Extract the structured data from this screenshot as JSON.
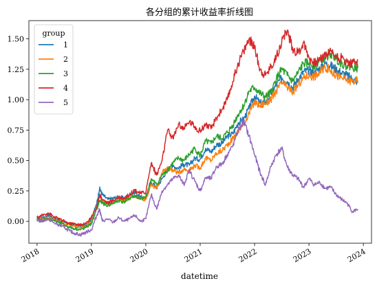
{
  "chart_data": {
    "type": "line",
    "title": "各分组的累计收益率折线图",
    "xlabel": "datetime",
    "ylabel": "",
    "x_ticks": [
      "2018",
      "2019",
      "2020",
      "2021",
      "2022",
      "2023",
      "2024"
    ],
    "y_ticks": [
      "0.00",
      "0.25",
      "0.50",
      "0.75",
      "1.00",
      "1.25",
      "1.50"
    ],
    "xlim": [
      2017.85,
      2024.15
    ],
    "ylim": [
      -0.18,
      1.65
    ],
    "grid": false,
    "legend": {
      "title": "group",
      "placement": "top-left"
    },
    "series": [
      {
        "name": "1",
        "color": "#1f77b4",
        "x": [
          2018.0,
          2018.1,
          2018.2,
          2018.3,
          2018.4,
          2018.5,
          2018.6,
          2018.7,
          2018.8,
          2018.9,
          2019.0,
          2019.1,
          2019.15,
          2019.2,
          2019.3,
          2019.4,
          2019.5,
          2019.6,
          2019.7,
          2019.8,
          2019.9,
          2020.0,
          2020.1,
          2020.2,
          2020.3,
          2020.4,
          2020.5,
          2020.6,
          2020.7,
          2020.8,
          2020.9,
          2021.0,
          2021.1,
          2021.2,
          2021.3,
          2021.4,
          2021.5,
          2021.6,
          2021.7,
          2021.8,
          2021.9,
          2022.0,
          2022.1,
          2022.2,
          2022.3,
          2022.4,
          2022.5,
          2022.6,
          2022.7,
          2022.8,
          2022.9,
          2023.0,
          2023.1,
          2023.2,
          2023.3,
          2023.4,
          2023.5,
          2023.6,
          2023.7,
          2023.8,
          2023.9
        ],
        "y": [
          0.02,
          0.03,
          0.05,
          0.03,
          0.01,
          -0.01,
          -0.02,
          -0.03,
          -0.04,
          -0.03,
          0.02,
          0.15,
          0.27,
          0.22,
          0.18,
          0.19,
          0.2,
          0.19,
          0.22,
          0.24,
          0.2,
          0.19,
          0.32,
          0.28,
          0.35,
          0.43,
          0.45,
          0.44,
          0.47,
          0.46,
          0.52,
          0.51,
          0.6,
          0.57,
          0.63,
          0.64,
          0.7,
          0.72,
          0.81,
          0.84,
          0.93,
          1.03,
          0.97,
          0.98,
          1.05,
          1.12,
          1.18,
          1.15,
          1.1,
          1.17,
          1.23,
          1.24,
          1.22,
          1.26,
          1.3,
          1.28,
          1.25,
          1.22,
          1.2,
          1.17,
          1.15
        ]
      },
      {
        "name": "2",
        "color": "#ff7f0e",
        "x": [
          2018.0,
          2018.1,
          2018.2,
          2018.3,
          2018.4,
          2018.5,
          2018.6,
          2018.7,
          2018.8,
          2018.9,
          2019.0,
          2019.1,
          2019.15,
          2019.2,
          2019.3,
          2019.4,
          2019.5,
          2019.6,
          2019.7,
          2019.8,
          2019.9,
          2020.0,
          2020.1,
          2020.2,
          2020.3,
          2020.4,
          2020.5,
          2020.6,
          2020.7,
          2020.8,
          2020.9,
          2021.0,
          2021.1,
          2021.2,
          2021.3,
          2021.4,
          2021.5,
          2021.6,
          2021.7,
          2021.8,
          2021.9,
          2022.0,
          2022.1,
          2022.2,
          2022.3,
          2022.4,
          2022.5,
          2022.6,
          2022.7,
          2022.8,
          2022.9,
          2023.0,
          2023.1,
          2023.2,
          2023.3,
          2023.4,
          2023.5,
          2023.6,
          2023.7,
          2023.8,
          2023.9
        ],
        "y": [
          0.01,
          0.02,
          0.03,
          0.02,
          0.0,
          -0.02,
          -0.03,
          -0.04,
          -0.05,
          -0.04,
          0.0,
          0.12,
          0.2,
          0.17,
          0.15,
          0.17,
          0.18,
          0.17,
          0.19,
          0.21,
          0.19,
          0.18,
          0.3,
          0.27,
          0.4,
          0.44,
          0.42,
          0.4,
          0.43,
          0.42,
          0.46,
          0.44,
          0.52,
          0.5,
          0.56,
          0.58,
          0.63,
          0.68,
          0.74,
          0.8,
          0.89,
          0.98,
          0.95,
          0.97,
          1.0,
          1.07,
          1.14,
          1.1,
          1.06,
          1.12,
          1.18,
          1.2,
          1.19,
          1.22,
          1.27,
          1.24,
          1.2,
          1.18,
          1.16,
          1.15,
          1.16
        ]
      },
      {
        "name": "3",
        "color": "#2ca02c",
        "x": [
          2018.0,
          2018.1,
          2018.2,
          2018.3,
          2018.4,
          2018.5,
          2018.6,
          2018.7,
          2018.8,
          2018.9,
          2019.0,
          2019.1,
          2019.15,
          2019.2,
          2019.3,
          2019.4,
          2019.5,
          2019.6,
          2019.7,
          2019.8,
          2019.9,
          2020.0,
          2020.1,
          2020.2,
          2020.3,
          2020.4,
          2020.5,
          2020.6,
          2020.7,
          2020.8,
          2020.9,
          2021.0,
          2021.1,
          2021.2,
          2021.3,
          2021.4,
          2021.5,
          2021.6,
          2021.7,
          2021.8,
          2021.9,
          2022.0,
          2022.1,
          2022.2,
          2022.3,
          2022.4,
          2022.5,
          2022.6,
          2022.7,
          2022.8,
          2022.9,
          2023.0,
          2023.1,
          2023.2,
          2023.3,
          2023.4,
          2023.5,
          2023.6,
          2023.7,
          2023.8,
          2023.9
        ],
        "y": [
          0.0,
          0.01,
          0.02,
          0.01,
          -0.01,
          -0.03,
          -0.05,
          -0.06,
          -0.07,
          -0.05,
          -0.02,
          0.1,
          0.17,
          0.15,
          0.13,
          0.15,
          0.17,
          0.16,
          0.19,
          0.21,
          0.18,
          0.2,
          0.35,
          0.3,
          0.38,
          0.42,
          0.48,
          0.52,
          0.5,
          0.55,
          0.6,
          0.54,
          0.66,
          0.64,
          0.7,
          0.68,
          0.73,
          0.79,
          0.88,
          0.95,
          1.07,
          1.1,
          1.05,
          1.02,
          1.06,
          1.17,
          1.25,
          1.2,
          1.15,
          1.22,
          1.3,
          1.3,
          1.28,
          1.32,
          1.35,
          1.38,
          1.34,
          1.3,
          1.28,
          1.27,
          1.26
        ]
      },
      {
        "name": "4",
        "color": "#d62728",
        "x": [
          2018.0,
          2018.1,
          2018.2,
          2018.3,
          2018.4,
          2018.5,
          2018.6,
          2018.7,
          2018.8,
          2018.9,
          2019.0,
          2019.1,
          2019.15,
          2019.2,
          2019.3,
          2019.4,
          2019.5,
          2019.6,
          2019.7,
          2019.8,
          2019.9,
          2020.0,
          2020.1,
          2020.2,
          2020.3,
          2020.4,
          2020.5,
          2020.6,
          2020.7,
          2020.8,
          2020.9,
          2021.0,
          2021.1,
          2021.2,
          2021.3,
          2021.4,
          2021.5,
          2021.6,
          2021.7,
          2021.8,
          2021.9,
          2022.0,
          2022.1,
          2022.2,
          2022.3,
          2022.4,
          2022.5,
          2022.6,
          2022.7,
          2022.8,
          2022.9,
          2023.0,
          2023.1,
          2023.2,
          2023.3,
          2023.4,
          2023.5,
          2023.6,
          2023.7,
          2023.8,
          2023.9
        ],
        "y": [
          0.03,
          0.05,
          0.07,
          0.04,
          0.02,
          0.0,
          -0.02,
          -0.02,
          -0.03,
          -0.02,
          0.04,
          0.12,
          0.22,
          0.18,
          0.15,
          0.17,
          0.2,
          0.19,
          0.22,
          0.26,
          0.23,
          0.24,
          0.48,
          0.38,
          0.5,
          0.75,
          0.68,
          0.8,
          0.76,
          0.82,
          0.78,
          0.74,
          0.8,
          0.76,
          0.85,
          0.92,
          1.0,
          1.15,
          1.3,
          1.4,
          1.5,
          1.43,
          1.25,
          1.2,
          1.27,
          1.35,
          1.48,
          1.57,
          1.42,
          1.38,
          1.47,
          1.35,
          1.3,
          1.33,
          1.37,
          1.4,
          1.36,
          1.34,
          1.31,
          1.3,
          1.32
        ]
      },
      {
        "name": "5",
        "color": "#9467bd",
        "x": [
          2018.0,
          2018.1,
          2018.2,
          2018.3,
          2018.4,
          2018.5,
          2018.6,
          2018.7,
          2018.8,
          2018.9,
          2019.0,
          2019.1,
          2019.15,
          2019.2,
          2019.3,
          2019.4,
          2019.5,
          2019.6,
          2019.7,
          2019.8,
          2019.9,
          2020.0,
          2020.1,
          2020.2,
          2020.3,
          2020.4,
          2020.5,
          2020.6,
          2020.7,
          2020.8,
          2020.9,
          2021.0,
          2021.1,
          2021.2,
          2021.3,
          2021.4,
          2021.5,
          2021.6,
          2021.7,
          2021.8,
          2021.9,
          2022.0,
          2022.1,
          2022.2,
          2022.3,
          2022.4,
          2022.5,
          2022.6,
          2022.7,
          2022.8,
          2022.9,
          2023.0,
          2023.1,
          2023.2,
          2023.3,
          2023.4,
          2023.5,
          2023.6,
          2023.7,
          2023.8,
          2023.9
        ],
        "y": [
          0.01,
          0.0,
          0.02,
          -0.01,
          -0.03,
          -0.05,
          -0.08,
          -0.1,
          -0.11,
          -0.09,
          -0.07,
          0.05,
          0.1,
          0.0,
          0.02,
          -0.01,
          0.03,
          0.0,
          0.02,
          0.05,
          0.0,
          0.02,
          0.22,
          0.1,
          0.25,
          0.3,
          0.35,
          0.38,
          0.3,
          0.42,
          0.33,
          0.25,
          0.36,
          0.35,
          0.45,
          0.47,
          0.55,
          0.62,
          0.75,
          0.82,
          0.7,
          0.55,
          0.4,
          0.3,
          0.45,
          0.55,
          0.6,
          0.45,
          0.38,
          0.35,
          0.28,
          0.35,
          0.3,
          0.32,
          0.27,
          0.28,
          0.22,
          0.18,
          0.15,
          0.08,
          0.1
        ]
      }
    ]
  }
}
